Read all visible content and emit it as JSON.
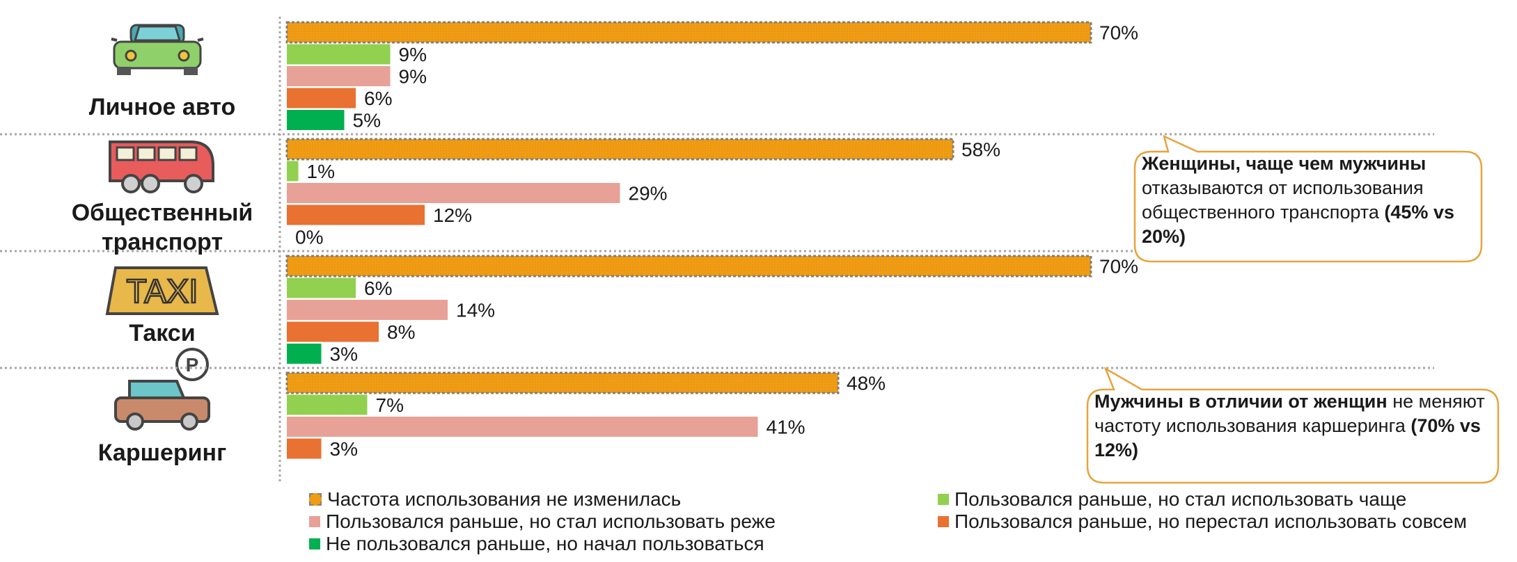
{
  "chart_data": {
    "type": "bar",
    "orientation": "horizontal",
    "categories": [
      "Личное авто",
      "Общественный транспорт",
      "Такси",
      "Каршеринг"
    ],
    "series": [
      {
        "name": "Частота использования не изменилась",
        "color": "#F09C14",
        "values": [
          70,
          58,
          70,
          48
        ]
      },
      {
        "name": "Пользовался раньше, но стал использовать чаще",
        "color": "#92D050",
        "values": [
          9,
          1,
          6,
          7
        ]
      },
      {
        "name": "Пользовался раньше, но стал использовать реже",
        "color": "#E8A197",
        "values": [
          9,
          29,
          14,
          41
        ]
      },
      {
        "name": "Пользовался раньше, но перестал использовать совсем",
        "color": "#E97132",
        "values": [
          6,
          12,
          8,
          3
        ]
      },
      {
        "name": "Не пользовался раньше, но начал пользоваться",
        "color": "#00B050",
        "values": [
          5,
          0,
          3,
          null
        ]
      }
    ],
    "value_suffix": "%",
    "xlim": [
      0,
      100
    ],
    "legend_position": "bottom"
  },
  "categories_display": [
    {
      "lines": [
        "Личное авто"
      ],
      "icon": "car-icon"
    },
    {
      "lines": [
        "Общественный",
        "транспорт"
      ],
      "icon": "bus-icon"
    },
    {
      "lines": [
        "Такси"
      ],
      "icon": "taxi-icon"
    },
    {
      "lines": [
        "Каршеринг"
      ],
      "icon": "carsharing-icon"
    }
  ],
  "callouts": [
    {
      "bold": "Женщины, чаще чем мужчины",
      "text": "отказываются от использования общественного транспорта",
      "bold_tail": "(45% vs  20%)"
    },
    {
      "bold": "Мужчины в отличии от женщин",
      "text": "не меняют частоту использования каршеринга",
      "bold_tail": "(70% vs 12%)"
    }
  ],
  "icons": {
    "taxi_text": "TAXI",
    "parking_letter": "P"
  },
  "colors": {
    "callout_border": "#E8A33D",
    "divider": "#A6A6A6",
    "hatch_border": "#7F7F7F"
  }
}
